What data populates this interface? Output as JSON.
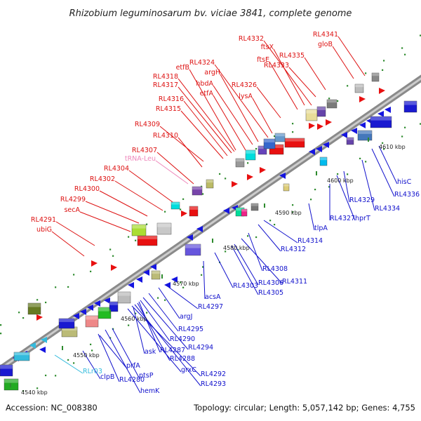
{
  "title": "Rhizobium leguminosarum bv. viciae 3841, complete genome",
  "accession": "Accession: NC_008380",
  "summary": "Topology: circular; Length: 5,057,142 bp; Genes: 4,755",
  "colors": {
    "forward_label": "#dd1111",
    "reverse_label": "#1111cc",
    "trna_label": "#ee88bb",
    "rrna_label": "#33bbdd",
    "backbone": "#999999"
  },
  "kbp_ticks": [
    "4540 kbp",
    "4550 kbp",
    "4560 kbp",
    "4570 kbp",
    "4580 kbp",
    "4590 kbp",
    "4600 kbp",
    "4610 kbp"
  ],
  "forward_genes": [
    "ubiG",
    "RL4291",
    "secA",
    "RL4299",
    "RL4300",
    "RL4302",
    "RL4304",
    "RL4307",
    "RL4310",
    "RL4309",
    "RL4315",
    "RL4316",
    "RL4317",
    "RL4318",
    "etfB",
    "etfA",
    "hbdA",
    "argH",
    "RL4324",
    "lysA",
    "RL4326",
    "ftsE",
    "ftsX",
    "RL4332",
    "RL4333",
    "RL4335",
    "gloB",
    "RL4341"
  ],
  "trna_genes": [
    "tRNA-Leu"
  ],
  "reverse_genes": [
    "clpB",
    "RL4280",
    "hemK",
    "prfA",
    "ptsP",
    "grxC",
    "RL4292",
    "RL4293",
    "RL4288",
    "RL4287",
    "ask",
    "RL4290",
    "RL4294",
    "RL4295",
    "argJ",
    "RL4297",
    "acsA",
    "RL4303",
    "RL4305",
    "RL4306",
    "RL4311",
    "RL4308",
    "RL4312",
    "RL4314",
    "tlpA",
    "RL4327",
    "hprT",
    "RL4329",
    "RL4334",
    "RL4336",
    "hisC"
  ],
  "rrna_genes": [
    "RLr03"
  ]
}
